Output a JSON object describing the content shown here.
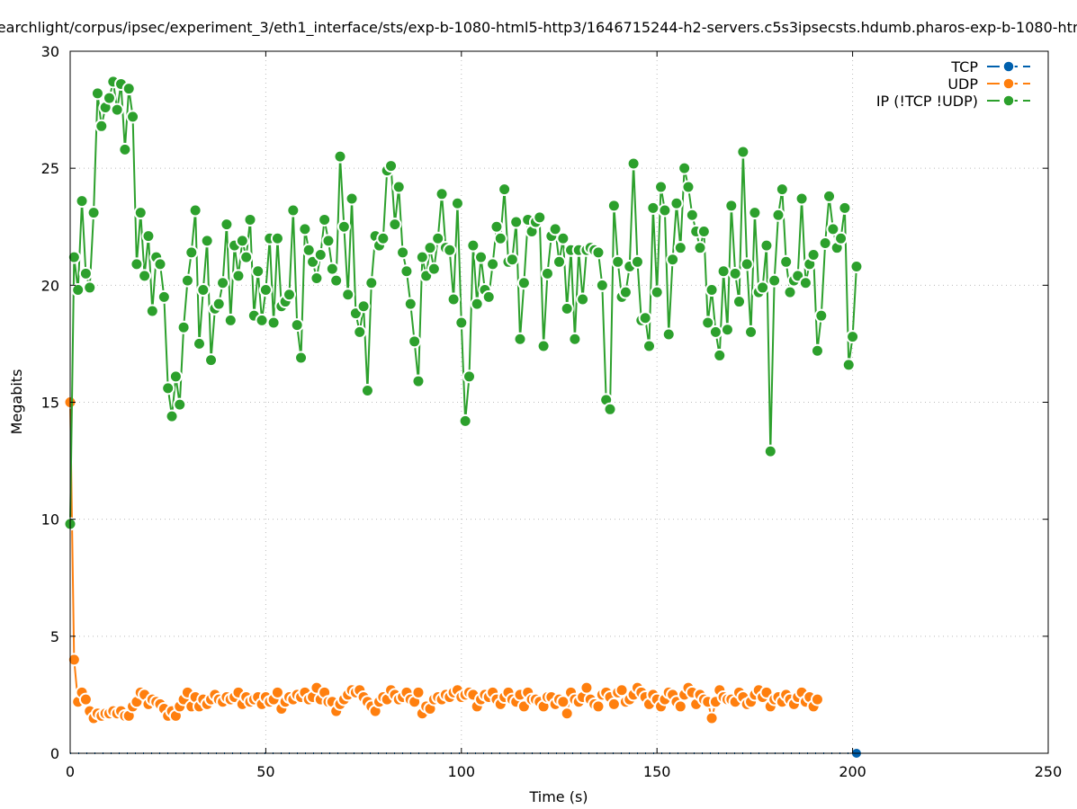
{
  "chart_data": {
    "type": "line",
    "title": "searchlight/corpus/ipsec/experiment_3/eth1_interface/sts/exp-b-1080-html5-http3/1646715244-h2-servers.c5s3ipsecsts.hdumb.pharos-exp-b-1080-htm",
    "xlabel": "Time (s)",
    "ylabel": "Megabits",
    "xlim": [
      0,
      250
    ],
    "ylim": [
      0,
      30
    ],
    "xticks": [
      "0",
      "50",
      "100",
      "150",
      "200",
      "250"
    ],
    "yticks": [
      "0",
      "5",
      "10",
      "15",
      "20",
      "25",
      "30"
    ],
    "grid": true,
    "legend_position": "top-right",
    "series": [
      {
        "name": "TCP",
        "color": "#0060ad",
        "x": [
          0,
          201
        ],
        "values": [
          0,
          0
        ]
      },
      {
        "name": "UDP",
        "color": "#ff7f0e",
        "x_start": 0,
        "x_step": 1,
        "values": [
          15,
          4.0,
          2.2,
          2.6,
          2.3,
          1.8,
          1.5,
          1.7,
          1.6,
          1.7,
          1.7,
          1.8,
          1.7,
          1.8,
          1.6,
          1.6,
          2.0,
          2.2,
          2.6,
          2.5,
          2.1,
          2.3,
          2.2,
          2.1,
          1.9,
          1.6,
          1.8,
          1.6,
          2.0,
          2.3,
          2.6,
          2.0,
          2.4,
          2.0,
          2.3,
          2.1,
          2.3,
          2.5,
          2.3,
          2.2,
          2.4,
          2.3,
          2.4,
          2.6,
          2.1,
          2.4,
          2.2,
          2.3,
          2.4,
          2.1,
          2.4,
          2.2,
          2.3,
          2.6,
          1.9,
          2.2,
          2.4,
          2.3,
          2.5,
          2.4,
          2.6,
          2.3,
          2.4,
          2.8,
          2.3,
          2.6,
          2.2,
          2.2,
          1.8,
          2.1,
          2.3,
          2.5,
          2.7,
          2.6,
          2.7,
          2.4,
          2.2,
          2.0,
          1.8,
          2.2,
          2.4,
          2.3,
          2.7,
          2.5,
          2.3,
          2.4,
          2.6,
          2.3,
          2.2,
          2.6,
          1.7,
          2.0,
          1.9,
          2.3,
          2.4,
          2.3,
          2.5,
          2.4,
          2.6,
          2.7,
          2.4,
          2.5,
          2.6,
          2.5,
          2.0,
          2.3,
          2.5,
          2.4,
          2.6,
          2.3,
          2.1,
          2.4,
          2.6,
          2.3,
          2.2,
          2.5,
          2.0,
          2.6,
          2.3,
          2.3,
          2.2,
          2.0,
          2.4,
          2.4,
          2.1,
          2.3,
          2.2,
          1.7,
          2.6,
          2.3,
          2.2,
          2.4,
          2.8,
          2.3,
          2.1,
          2.0,
          2.5,
          2.6,
          2.4,
          2.1,
          2.6,
          2.7,
          2.2,
          2.3,
          2.5,
          2.8,
          2.6,
          2.4,
          2.1,
          2.5,
          2.3,
          2.0,
          2.3,
          2.6,
          2.5,
          2.2,
          2.0,
          2.5,
          2.8,
          2.6,
          2.1,
          2.5,
          2.3,
          2.2,
          1.5,
          2.2,
          2.7,
          2.4,
          2.3,
          2.3,
          2.2,
          2.6,
          2.4,
          2.1,
          2.2,
          2.5,
          2.7,
          2.4,
          2.6,
          2.0,
          2.3,
          2.4,
          2.2,
          2.5,
          2.3,
          2.1,
          2.4,
          2.6,
          2.2,
          2.4,
          2.0,
          2.3
        ]
      },
      {
        "name": "IP (!TCP  !UDP)",
        "color": "#2ca02c",
        "x_start": 0,
        "x_step": 1,
        "values": [
          9.8,
          21.2,
          19.8,
          23.6,
          20.5,
          19.9,
          23.1,
          28.2,
          26.8,
          27.6,
          28.0,
          28.7,
          27.5,
          28.6,
          25.8,
          28.4,
          27.2,
          20.9,
          23.1,
          20.4,
          22.1,
          18.9,
          21.2,
          20.9,
          19.5,
          15.6,
          14.4,
          16.1,
          14.9,
          18.2,
          20.2,
          21.4,
          23.2,
          17.5,
          19.8,
          21.9,
          16.8,
          19.0,
          19.2,
          20.1,
          22.6,
          18.5,
          21.7,
          20.4,
          21.9,
          21.2,
          22.8,
          18.7,
          20.6,
          18.5,
          19.8,
          22.0,
          18.4,
          22.0,
          19.1,
          19.3,
          19.6,
          23.2,
          18.3,
          16.9,
          22.4,
          21.5,
          21.0,
          20.3,
          21.3,
          22.8,
          21.9,
          20.7,
          20.2,
          25.5,
          22.5,
          19.6,
          23.7,
          18.8,
          18.0,
          19.1,
          15.5,
          20.1,
          22.1,
          21.7,
          22.0,
          24.9,
          25.1,
          22.6,
          24.2,
          21.4,
          20.6,
          19.2,
          17.6,
          15.9,
          21.2,
          20.4,
          21.6,
          20.7,
          22.0,
          23.9,
          21.6,
          21.5,
          19.4,
          23.5,
          18.4,
          14.2,
          16.1,
          21.7,
          19.2,
          21.2,
          19.8,
          19.5,
          20.9,
          22.5,
          22.0,
          24.1,
          21.0,
          21.1,
          22.7,
          17.7,
          20.1,
          22.8,
          22.3,
          22.7,
          22.9,
          17.4,
          20.5,
          22.1,
          22.4,
          21.0,
          22.0,
          19.0,
          21.5,
          17.7,
          21.5,
          19.4,
          21.5,
          21.6,
          21.5,
          21.4,
          20.0,
          15.1,
          14.7,
          23.4,
          21.0,
          19.5,
          19.7,
          20.8,
          25.2,
          21.0,
          18.5,
          18.6,
          17.4,
          23.3,
          19.7,
          24.2,
          23.2,
          17.9,
          21.1,
          23.5,
          21.6,
          25.0,
          24.2,
          23.0,
          22.3,
          21.6,
          22.3,
          18.4,
          19.8,
          18.0,
          17.0,
          20.6,
          18.1,
          23.4,
          20.5,
          19.3,
          25.7,
          20.9,
          18.0,
          23.1,
          19.7,
          19.9,
          21.7,
          12.9,
          20.2,
          23.0,
          24.1,
          21.0,
          19.7,
          20.2,
          20.4,
          23.7,
          20.1,
          20.9,
          21.3,
          17.2,
          18.7,
          21.8,
          23.8,
          22.4,
          21.6,
          22.0,
          23.3,
          16.6,
          17.8,
          20.8
        ]
      }
    ]
  }
}
